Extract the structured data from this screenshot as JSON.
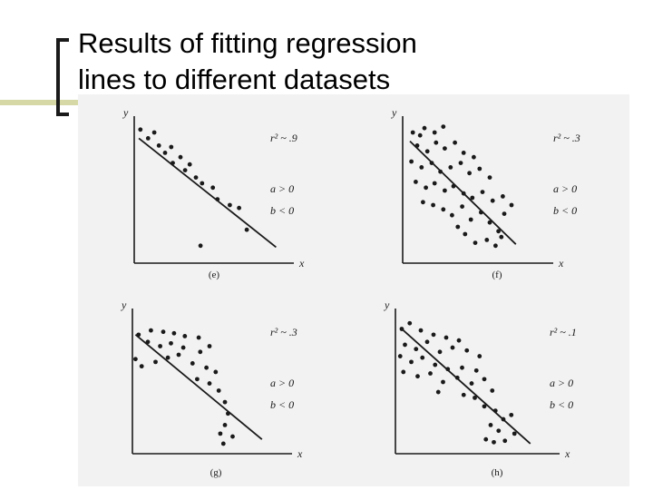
{
  "slide": {
    "title_line1": "Results of fitting regression",
    "title_line2": "lines to different datasets"
  },
  "colors": {
    "accent_bar": "#d6d9a6",
    "scan_background": "#f2f2f2",
    "ink": "#1a1a1a"
  },
  "chart_data": [
    {
      "type": "scatter",
      "panel_label": "(e)",
      "xlabel": "x",
      "ylabel": "y",
      "annotations": [
        "r² ~ .9",
        "a > 0",
        "b < 0"
      ],
      "regression_line": [
        [
          0.3,
          8.6
        ],
        [
          9.2,
          1.1
        ]
      ],
      "points": [
        [
          0.4,
          9.2
        ],
        [
          0.9,
          8.6
        ],
        [
          1.3,
          9.0
        ],
        [
          1.6,
          8.1
        ],
        [
          2.0,
          7.6
        ],
        [
          2.4,
          8.0
        ],
        [
          3.0,
          7.3
        ],
        [
          2.5,
          6.9
        ],
        [
          3.3,
          6.4
        ],
        [
          3.6,
          6.8
        ],
        [
          4.0,
          5.9
        ],
        [
          4.4,
          5.5
        ],
        [
          5.1,
          5.2
        ],
        [
          5.4,
          4.4
        ],
        [
          6.2,
          4.0
        ],
        [
          6.8,
          3.8
        ],
        [
          7.3,
          2.3
        ],
        [
          4.3,
          1.2
        ]
      ]
    },
    {
      "type": "scatter",
      "panel_label": "(f)",
      "xlabel": "x",
      "ylabel": "y",
      "annotations": [
        "r² ~ .3",
        "a > 0",
        "b < 0"
      ],
      "regression_line": [
        [
          0.5,
          8.4
        ],
        [
          7.8,
          1.3
        ]
      ],
      "points": [
        [
          0.7,
          9.0
        ],
        [
          1.2,
          8.8
        ],
        [
          1.5,
          9.3
        ],
        [
          2.2,
          9.0
        ],
        [
          2.8,
          9.4
        ],
        [
          1.0,
          8.1
        ],
        [
          1.7,
          7.7
        ],
        [
          2.3,
          8.3
        ],
        [
          2.9,
          7.9
        ],
        [
          3.6,
          8.3
        ],
        [
          4.2,
          7.6
        ],
        [
          4.9,
          7.3
        ],
        [
          0.6,
          7.0
        ],
        [
          1.3,
          6.6
        ],
        [
          2.0,
          6.9
        ],
        [
          2.6,
          6.3
        ],
        [
          3.3,
          6.6
        ],
        [
          4.0,
          6.9
        ],
        [
          4.6,
          6.2
        ],
        [
          5.3,
          6.5
        ],
        [
          6.0,
          5.9
        ],
        [
          0.9,
          5.6
        ],
        [
          1.6,
          5.2
        ],
        [
          2.2,
          5.5
        ],
        [
          2.9,
          5.0
        ],
        [
          3.5,
          5.3
        ],
        [
          4.2,
          4.8
        ],
        [
          4.8,
          4.5
        ],
        [
          5.5,
          4.9
        ],
        [
          6.2,
          4.3
        ],
        [
          6.9,
          4.6
        ],
        [
          7.5,
          4.0
        ],
        [
          1.4,
          4.2
        ],
        [
          2.1,
          4.0
        ],
        [
          2.8,
          3.7
        ],
        [
          3.4,
          3.3
        ],
        [
          4.1,
          3.9
        ],
        [
          4.7,
          3.0
        ],
        [
          5.4,
          3.5
        ],
        [
          6.0,
          2.8
        ],
        [
          6.6,
          2.2
        ],
        [
          5.0,
          1.4
        ],
        [
          5.8,
          1.6
        ],
        [
          6.4,
          1.2
        ],
        [
          4.3,
          2.0
        ],
        [
          3.8,
          2.5
        ],
        [
          7.0,
          3.4
        ],
        [
          6.8,
          1.8
        ]
      ]
    },
    {
      "type": "scatter",
      "panel_label": "(g)",
      "xlabel": "x",
      "ylabel": "y",
      "annotations": [
        "r² ~ .3",
        "a > 0",
        "b < 0"
      ],
      "regression_line": [
        [
          0.2,
          8.3
        ],
        [
          8.4,
          1.0
        ]
      ],
      "points": [
        [
          0.4,
          8.3
        ],
        [
          1.2,
          8.6
        ],
        [
          2.0,
          8.5
        ],
        [
          2.7,
          8.4
        ],
        [
          3.4,
          8.2
        ],
        [
          4.3,
          8.1
        ],
        [
          1.0,
          7.8
        ],
        [
          1.8,
          7.5
        ],
        [
          2.5,
          7.7
        ],
        [
          3.3,
          7.4
        ],
        [
          4.4,
          7.1
        ],
        [
          5.0,
          7.5
        ],
        [
          2.3,
          6.7
        ],
        [
          3.0,
          6.9
        ],
        [
          3.9,
          6.3
        ],
        [
          4.8,
          6.0
        ],
        [
          5.4,
          5.7
        ],
        [
          4.2,
          5.2
        ],
        [
          5.0,
          4.9
        ],
        [
          5.6,
          4.4
        ],
        [
          6.0,
          3.6
        ],
        [
          6.2,
          2.8
        ],
        [
          6.0,
          2.0
        ],
        [
          5.7,
          1.4
        ],
        [
          6.5,
          1.2
        ],
        [
          5.9,
          0.7
        ],
        [
          0.6,
          6.1
        ],
        [
          0.2,
          6.6
        ],
        [
          1.5,
          6.4
        ]
      ]
    },
    {
      "type": "scatter",
      "panel_label": "(h)",
      "xlabel": "x",
      "ylabel": "y",
      "annotations": [
        "r² ~ .1",
        "a > 0",
        "b < 0"
      ],
      "regression_line": [
        [
          0.3,
          8.8
        ],
        [
          8.5,
          0.7
        ]
      ],
      "points": [
        [
          0.4,
          8.7
        ],
        [
          0.9,
          9.1
        ],
        [
          1.6,
          8.6
        ],
        [
          2.4,
          8.3
        ],
        [
          3.2,
          8.1
        ],
        [
          4.0,
          7.9
        ],
        [
          0.6,
          7.6
        ],
        [
          1.3,
          7.3
        ],
        [
          2.0,
          7.8
        ],
        [
          2.8,
          7.1
        ],
        [
          3.6,
          7.4
        ],
        [
          4.5,
          7.2
        ],
        [
          5.3,
          6.8
        ],
        [
          0.3,
          6.8
        ],
        [
          1.0,
          6.4
        ],
        [
          1.7,
          6.7
        ],
        [
          2.5,
          6.2
        ],
        [
          3.3,
          5.9
        ],
        [
          4.2,
          6.0
        ],
        [
          5.1,
          5.8
        ],
        [
          0.5,
          5.7
        ],
        [
          1.4,
          5.4
        ],
        [
          2.2,
          5.6
        ],
        [
          3.0,
          5.0
        ],
        [
          3.9,
          5.3
        ],
        [
          4.8,
          4.9
        ],
        [
          5.6,
          5.2
        ],
        [
          6.1,
          4.4
        ],
        [
          4.3,
          4.1
        ],
        [
          5.0,
          3.9
        ],
        [
          5.6,
          3.3
        ],
        [
          6.3,
          3.0
        ],
        [
          6.8,
          2.4
        ],
        [
          7.3,
          2.7
        ],
        [
          6.0,
          2.0
        ],
        [
          6.5,
          1.6
        ],
        [
          5.7,
          1.0
        ],
        [
          6.2,
          0.8
        ],
        [
          6.9,
          0.9
        ],
        [
          7.5,
          1.4
        ],
        [
          2.7,
          4.3
        ]
      ]
    }
  ]
}
